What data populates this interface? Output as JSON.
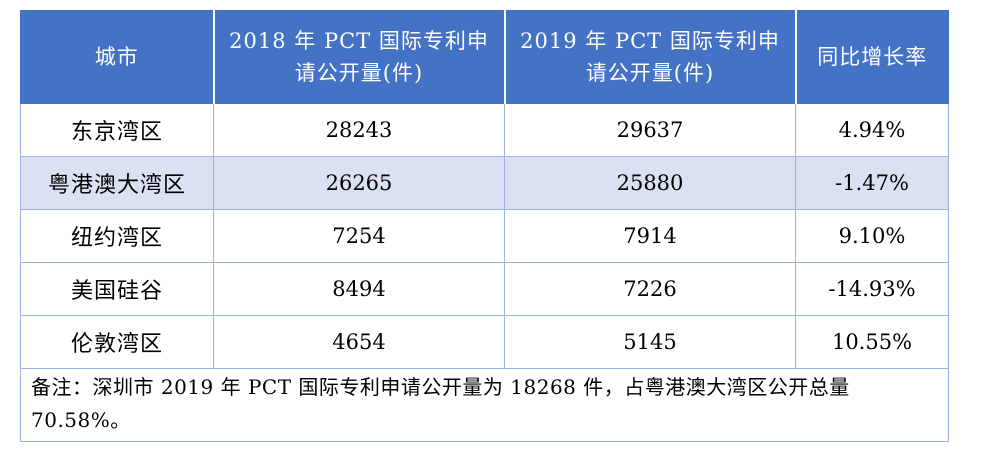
{
  "table": {
    "headers": [
      "城市",
      "2018 年 PCT 国际专利申请公开量(件)",
      "2019 年 PCT 国际专利申请公开量(件)",
      "同比增长率"
    ],
    "rows": [
      {
        "city": "东京湾区",
        "y2018": "28243",
        "y2019": "29637",
        "growth": "4.94%"
      },
      {
        "city": "粤港澳大湾区",
        "y2018": "26265",
        "y2019": "25880",
        "growth": "-1.47%"
      },
      {
        "city": "纽约湾区",
        "y2018": "7254",
        "y2019": "7914",
        "growth": "9.10%"
      },
      {
        "city": "美国硅谷",
        "y2018": "8494",
        "y2019": "7226",
        "growth": "-14.93%"
      },
      {
        "city": "伦敦湾区",
        "y2018": "4654",
        "y2019": "5145",
        "growth": "10.55%"
      }
    ],
    "note": "备注：深圳市 2019 年 PCT 国际专利申请公开量为 18268 件，占粤港澳大湾区公开总量 70.58%。"
  },
  "colors": {
    "header_bg": "#4472C4",
    "header_text": "#FFFFFF",
    "band_bg": "#D9E1F2",
    "border": "#9DB3DB"
  }
}
